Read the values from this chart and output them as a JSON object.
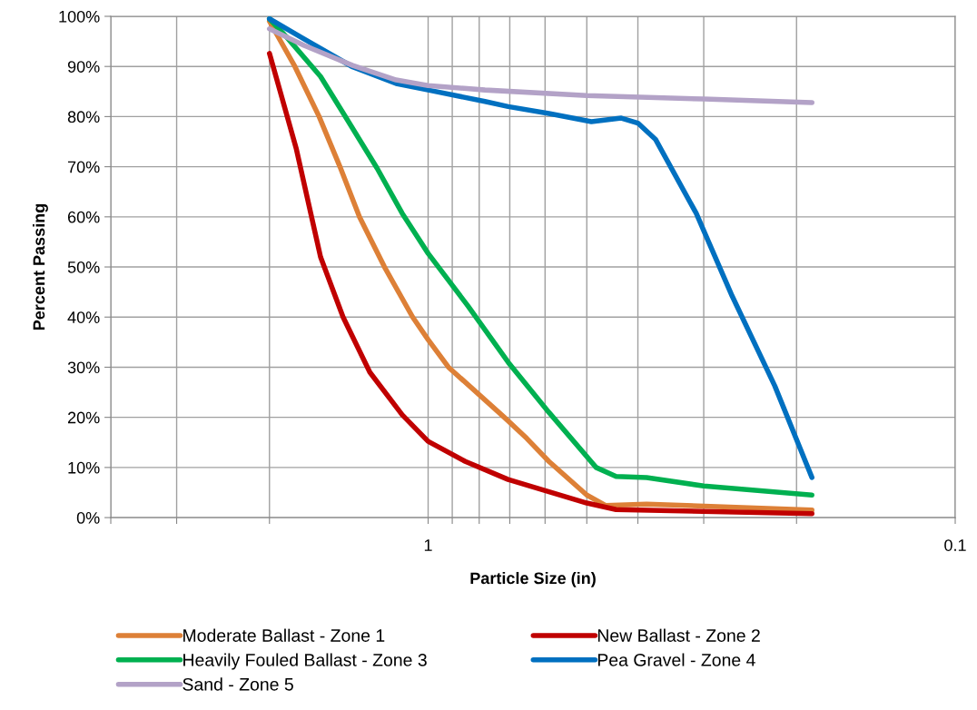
{
  "chart_data": {
    "type": "line",
    "xlabel": "Particle Size (in)",
    "ylabel": "Percent Passing",
    "log": "x",
    "grid": true,
    "legend": "bottom",
    "marker": "none",
    "line_style": "solid",
    "xlim": [
      4,
      0.1
    ],
    "xticks": [
      {
        "value": 4,
        "label": null
      },
      {
        "value": 3,
        "label": null
      },
      {
        "value": 2,
        "label": null
      },
      1,
      {
        "value": 0.9,
        "label": null
      },
      {
        "value": 0.8,
        "label": null
      },
      {
        "value": 0.7,
        "label": null
      },
      {
        "value": 0.6,
        "label": null
      },
      {
        "value": 0.5,
        "label": null
      },
      {
        "value": 0.4,
        "label": null
      },
      {
        "value": 0.3,
        "label": null
      },
      {
        "value": 0.2,
        "label": null
      },
      0.1
    ],
    "ylim": [
      0,
      100
    ],
    "yticks": [
      {
        "value": 0,
        "label": "0%"
      },
      {
        "value": 10,
        "label": "10%"
      },
      {
        "value": 20,
        "label": "20%"
      },
      {
        "value": 30,
        "label": "30%"
      },
      {
        "value": 40,
        "label": "40%"
      },
      {
        "value": 50,
        "label": "50%"
      },
      {
        "value": 60,
        "label": "60%"
      },
      {
        "value": 70,
        "label": "70%"
      },
      {
        "value": 80,
        "label": "80%"
      },
      {
        "value": 90,
        "label": "90%"
      },
      {
        "value": 100,
        "label": "100%"
      }
    ],
    "series": [
      {
        "name": "Moderate Ballast - Zone 1",
        "color": "#dd8037",
        "x": [
          2,
          1.79,
          1.61,
          1.47,
          1.35,
          1.21,
          1.07,
          1.0,
          0.915,
          0.717,
          0.65,
          0.59,
          0.5,
          0.46,
          0.385,
          0.187
        ],
        "values": [
          99,
          90,
          80,
          70,
          60,
          50,
          40,
          35.5,
          30,
          20,
          15.8,
          11.2,
          4.5,
          2.4,
          2.7,
          1.5
        ]
      },
      {
        "name": "New Ballast - Zone 2",
        "color": "#c00000",
        "x": [
          2,
          1.78,
          1.6,
          1.45,
          1.29,
          1.12,
          1.0,
          0.85,
          0.705,
          0.5,
          0.44,
          0.187
        ],
        "values": [
          92.6,
          73.7,
          52,
          40,
          29,
          20.5,
          15.2,
          11.2,
          7.6,
          2.9,
          1.6,
          0.8
        ]
      },
      {
        "name": "Heavily Fouled Ballast - Zone 3",
        "color": "#00b050",
        "x": [
          2,
          1.86,
          1.6,
          1.43,
          1.25,
          1.12,
          1.0,
          0.84,
          0.705,
          0.59,
          0.48,
          0.44,
          0.385,
          0.3,
          0.187
        ],
        "values": [
          99.5,
          96,
          88,
          79.7,
          69.7,
          60.7,
          52.7,
          42.2,
          31,
          21,
          10,
          8.2,
          8,
          6.3,
          4.5
        ]
      },
      {
        "name": "Pea Gravel - Zone 4",
        "color": "#0070c0",
        "x": [
          2,
          1.72,
          1.39,
          1.15,
          1.0,
          0.78,
          0.705,
          0.59,
          0.49,
          0.43,
          0.4,
          0.37,
          0.31,
          0.265,
          0.22,
          0.187
        ],
        "values": [
          99.5,
          95.5,
          89.9,
          86.6,
          85.3,
          83,
          82,
          80.6,
          79,
          79.7,
          78.7,
          75.4,
          60.7,
          44.2,
          26.3,
          8
        ]
      },
      {
        "name": "Sand - Zone 5",
        "color": "#b3a2c7",
        "x": [
          2,
          1.72,
          1.39,
          1.15,
          1.0,
          0.78,
          0.5,
          0.3,
          0.187
        ],
        "values": [
          97.5,
          94.2,
          90.2,
          87.3,
          86.2,
          85.3,
          84.2,
          83.5,
          82.8
        ]
      }
    ]
  }
}
